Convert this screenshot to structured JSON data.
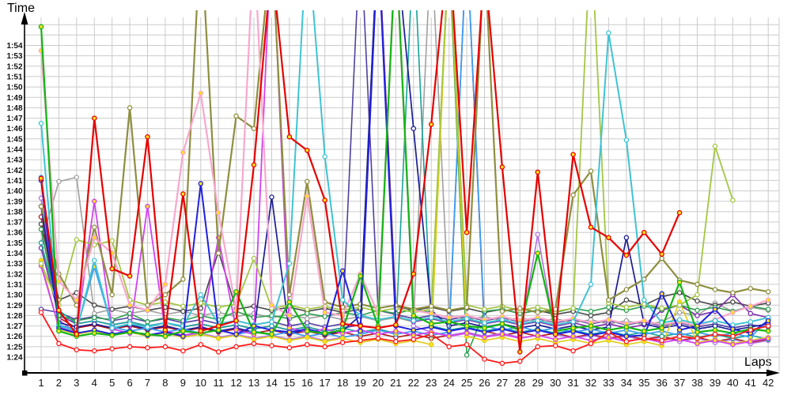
{
  "chart_data": {
    "type": "line",
    "title": "",
    "xlabel": "Laps",
    "ylabel": "Time",
    "grid": true,
    "grid_color": "#cbcbcb",
    "axis_color": "#000000",
    "background": "#ffffff",
    "marker_yellow": "#ffe01a",
    "marker_open": "#ffffff",
    "xlim": [
      1,
      42
    ],
    "ylim_seconds": [
      84,
      117
    ],
    "x_ticks": [
      1,
      2,
      3,
      4,
      5,
      6,
      7,
      8,
      9,
      10,
      11,
      12,
      13,
      14,
      15,
      16,
      17,
      18,
      19,
      20,
      21,
      22,
      23,
      24,
      25,
      26,
      27,
      28,
      29,
      30,
      31,
      32,
      33,
      34,
      35,
      36,
      37,
      38,
      39,
      40,
      41,
      42
    ],
    "y_ticks": [
      "1:24",
      "1:25",
      "1:26",
      "1:27",
      "1:28",
      "1:29",
      "1:30",
      "1:31",
      "1:32",
      "1:33",
      "1:34",
      "1:35",
      "1:36",
      "1:37",
      "1:38",
      "1:39",
      "1:40",
      "1:41",
      "1:42",
      "1:43",
      "1:44",
      "1:45",
      "1:46",
      "1:47",
      "1:48",
      "1:49",
      "1:50",
      "1:51",
      "1:52",
      "1:53",
      "1:54"
    ],
    "series": [
      {
        "id": "indigo",
        "color": "#50409f",
        "marker": "open",
        "w": 1.6,
        "values": [
          88.6,
          88.3,
          87.6,
          87.9,
          87.5,
          87.8,
          87.4,
          87.7,
          87.3,
          87.6,
          87.2,
          87.5,
          87.1,
          87.4,
          87.0,
          87.3,
          86.9,
          87.2,
          125,
          88.5,
          88.1,
          87.7,
          88.0,
          87.6,
          87.9,
          87.5,
          87.8,
          87.4,
          87.7,
          87.3,
          87.6,
          87.2,
          87.5,
          87.1,
          87.4,
          87.0,
          87.3,
          86.9,
          87.2,
          86.8,
          87.1,
          86.9
        ]
      },
      {
        "id": "darkred",
        "color": "#b01818",
        "marker": "open",
        "w": 1.6,
        "values": [
          97.5,
          87.8,
          86.8,
          87.1,
          86.7,
          87.0,
          86.6,
          86.9,
          86.5,
          86.8,
          86.4,
          86.7,
          86.3,
          86.6,
          86.2,
          86.5,
          86.1,
          86.4,
          86.0,
          86.3,
          85.9,
          86.2,
          85.8,
          86.1,
          124,
          86.5,
          86.1,
          86.4,
          86.0,
          86.3,
          85.9,
          86.2,
          85.8,
          86.1,
          85.7,
          86.0,
          85.6,
          85.9,
          85.5,
          85.8,
          85.4,
          85.7
        ]
      },
      {
        "id": "gray",
        "color": "#a0a0a0",
        "marker": "open",
        "w": 1.6,
        "values": [
          95.0,
          100.9,
          101.3,
          88.2,
          88.6,
          88.2,
          88.5,
          88.1,
          88.4,
          88.0,
          88.3,
          87.9,
          88.2,
          87.8,
          88.1,
          87.7,
          88.0,
          87.6,
          87.9,
          87.5,
          87.8,
          87.4,
          124,
          88.0,
          87.6,
          87.9,
          87.5,
          87.8,
          87.4,
          87.7,
          87.3,
          87.6,
          87.2,
          87.5,
          87.1,
          87.4,
          88.3,
          88.0,
          89.2,
          88.4,
          88.8,
          88.5
        ]
      },
      {
        "id": "darkgray",
        "color": "#474747",
        "marker": "open",
        "w": 1.6,
        "values": [
          96.8,
          89.5,
          90.2,
          89.0,
          88.6,
          88.9,
          88.5,
          88.8,
          88.4,
          88.7,
          94.2,
          88.6,
          88.9,
          88.5,
          88.8,
          88.4,
          88.7,
          88.3,
          88.6,
          125,
          88.9,
          88.5,
          88.8,
          88.4,
          88.7,
          88.3,
          88.6,
          88.2,
          88.5,
          88.1,
          88.4,
          88.0,
          88.3,
          89.5,
          89.0,
          89.8,
          90.2,
          89.4,
          89.0,
          89.3,
          88.9,
          89.2
        ]
      },
      {
        "id": "purple",
        "color": "#7e2fae",
        "marker": "open",
        "w": 1.6,
        "values": [
          94.5,
          88.0,
          87.2,
          87.5,
          87.1,
          87.4,
          87.0,
          87.3,
          86.9,
          87.2,
          86.8,
          87.1,
          86.7,
          87.0,
          86.6,
          86.9,
          86.5,
          86.8,
          87.1,
          125,
          88.0,
          87.4,
          87.7,
          87.3,
          87.6,
          87.2,
          87.5,
          87.1,
          87.4,
          87.0,
          87.3,
          86.9,
          87.2,
          86.8,
          87.1,
          88.5,
          89.0,
          88.0,
          88.4,
          90.0,
          88.2,
          87.8
        ]
      },
      {
        "id": "violet",
        "color": "#b273e0",
        "marker": "open",
        "w": 1.6,
        "values": [
          99.3,
          87.6,
          86.3,
          86.6,
          86.2,
          86.5,
          86.1,
          86.4,
          86.0,
          86.3,
          85.9,
          86.2,
          85.8,
          86.1,
          85.7,
          86.0,
          85.6,
          85.9,
          86.2,
          86.6,
          124,
          87.0,
          86.4,
          86.1,
          86.4,
          86.0,
          86.3,
          85.9,
          95.8,
          86.2,
          85.8,
          86.1,
          85.7,
          86.0,
          85.6,
          85.9,
          85.5,
          85.8,
          85.4,
          85.7,
          85.3,
          85.6
        ]
      },
      {
        "id": "teal",
        "color": "#17a398",
        "marker": "open",
        "w": 1.6,
        "values": [
          95.0,
          88.5,
          87.2,
          87.5,
          87.1,
          87.4,
          87.0,
          87.3,
          86.9,
          87.2,
          86.8,
          87.1,
          86.7,
          87.0,
          86.6,
          86.9,
          86.5,
          86.8,
          86.4,
          86.7,
          86.3,
          124,
          87.0,
          86.6,
          86.9,
          86.5,
          86.8,
          86.4,
          86.7,
          86.3,
          86.6,
          86.2,
          86.5,
          86.1,
          86.4,
          86.0,
          86.3,
          85.9,
          86.2,
          85.8,
          86.1,
          85.7
        ]
      },
      {
        "id": "forest",
        "color": "#2e9e4f",
        "marker": "open",
        "w": 1.6,
        "values": [
          96.3,
          88.0,
          87.5,
          87.8,
          87.6,
          88.2,
          87.4,
          87.8,
          87.5,
          88.0,
          87.6,
          88.4,
          87.8,
          88.0,
          87.7,
          88.2,
          87.9,
          88.3,
          88.0,
          88.5,
          88.2,
          88.6,
          88.3,
          123,
          84.2,
          88.4,
          88.6,
          88.2,
          88.5,
          88.3,
          88.7,
          88.4,
          88.8,
          88.5,
          88.9,
          88.6,
          89.0,
          88.5,
          88.8,
          88.4,
          88.9,
          88.6
        ]
      },
      {
        "id": "navy",
        "color": "#1c1c94",
        "marker": "open",
        "w": 1.7,
        "values": [
          98.5,
          87.3,
          86.9,
          87.2,
          86.8,
          87.1,
          86.7,
          87.0,
          86.6,
          86.9,
          86.5,
          86.8,
          86.4,
          99.4,
          86.3,
          86.6,
          86.2,
          86.5,
          88.0,
          125,
          124,
          106.0,
          88.5,
          87.0,
          87.3,
          86.9,
          87.2,
          86.8,
          87.1,
          86.7,
          87.0,
          86.6,
          86.9,
          95.5,
          87.2,
          86.8,
          87.1,
          86.7,
          87.0,
          86.6,
          86.9,
          87.2
        ]
      },
      {
        "id": "dodger",
        "color": "#3e9df2",
        "marker": "yellow",
        "w": 1.8,
        "values": [
          101.3,
          87.1,
          86.6,
          92.7,
          86.9,
          86.5,
          86.8,
          86.4,
          86.7,
          86.3,
          86.6,
          86.2,
          86.5,
          86.1,
          86.4,
          86.0,
          86.3,
          85.9,
          86.2,
          86.6,
          86.2,
          86.5,
          86.1,
          86.4,
          124,
          87.0,
          86.6,
          86.9,
          86.5,
          86.8,
          86.4,
          86.7,
          86.3,
          86.6,
          86.2,
          86.5,
          86.1,
          86.4,
          86.0,
          86.3,
          85.9,
          87.6
        ]
      },
      {
        "id": "yellow",
        "color": "#dfce1f",
        "marker": "yellow",
        "w": 1.7,
        "values": [
          93.3,
          86.7,
          86.2,
          86.5,
          86.1,
          86.4,
          86.0,
          86.3,
          85.9,
          86.2,
          85.8,
          86.1,
          85.7,
          86.0,
          85.6,
          85.9,
          85.5,
          85.8,
          85.4,
          85.7,
          85.3,
          85.6,
          85.2,
          124,
          86.0,
          85.6,
          85.9,
          85.5,
          85.8,
          85.4,
          85.7,
          85.3,
          85.6,
          85.2,
          85.5,
          85.1,
          89.3,
          85.4,
          85.7,
          85.3,
          85.6,
          85.9
        ]
      },
      {
        "id": "magenta",
        "color": "#d143ef",
        "marker": "yellow",
        "w": 1.8,
        "values": [
          92.8,
          86.9,
          86.4,
          99.0,
          86.7,
          86.3,
          98.5,
          86.5,
          86.1,
          86.4,
          95.5,
          86.6,
          86.2,
          125,
          86.8,
          86.4,
          86.7,
          86.3,
          86.6,
          86.2,
          86.5,
          86.1,
          86.4,
          86.0,
          86.3,
          85.9,
          86.2,
          85.8,
          86.1,
          85.7,
          86.0,
          85.6,
          85.9,
          85.5,
          85.8,
          85.4,
          85.7,
          85.3,
          85.6,
          85.2,
          85.5,
          85.8
        ]
      },
      {
        "id": "yellowgreen",
        "color": "#a3c643",
        "marker": "open",
        "w": 1.8,
        "values": [
          93.0,
          89.0,
          95.3,
          94.8,
          95.2,
          89.5,
          89.0,
          89.3,
          88.9,
          89.2,
          88.8,
          89.1,
          93.5,
          88.7,
          89.0,
          88.6,
          88.9,
          88.5,
          88.8,
          88.4,
          88.7,
          88.3,
          88.6,
          124,
          89.0,
          88.6,
          88.9,
          88.5,
          88.8,
          88.4,
          88.7,
          125,
          89.2,
          88.8,
          89.1,
          88.7,
          89.0,
          90.0,
          104.3,
          99.1,
          null,
          null
        ]
      },
      {
        "id": "olive",
        "color": "#8e8e40",
        "marker": "open",
        "w": 2.2,
        "values": [
          98.5,
          92.0,
          89.0,
          96.5,
          90.0,
          108.0,
          89.0,
          90.0,
          91.5,
          125,
          94.0,
          107.2,
          106.0,
          124,
          90.0,
          100.9,
          89.3,
          88.8,
          89.1,
          88.7,
          89.0,
          88.6,
          88.9,
          88.5,
          88.8,
          123,
          88.4,
          88.7,
          88.3,
          88.6,
          99.6,
          101.9,
          89.5,
          90.5,
          91.5,
          93.5,
          91.4,
          91.0,
          90.5,
          90.2,
          90.6,
          90.3
        ]
      },
      {
        "id": "pink",
        "color": "#f9a7cd",
        "marker": "yellow",
        "w": 2.2,
        "values": [
          113.5,
          91.3,
          89.5,
          95.5,
          94.0,
          89.0,
          88.5,
          91.0,
          103.7,
          109.4,
          97.9,
          88.5,
          124,
          89.0,
          88.0,
          99.5,
          88.3,
          88.0,
          92.0,
          88.2,
          123,
          88.5,
          88.2,
          87.8,
          88.0,
          87.6,
          87.9,
          87.5,
          87.8,
          87.4,
          87.7,
          87.3,
          87.6,
          87.2,
          87.5,
          87.1,
          87.4,
          87.0,
          87.6,
          88.3,
          88.9,
          89.5
        ]
      },
      {
        "id": "cyan",
        "color": "#3fc3d4",
        "marker": "open",
        "w": 2.0,
        "values": [
          106.5,
          87.0,
          86.5,
          93.3,
          86.8,
          87.2,
          86.9,
          87.3,
          87.0,
          90.0,
          87.2,
          87.5,
          87.1,
          87.4,
          93.0,
          125,
          103.3,
          89.5,
          88.0,
          87.6,
          87.9,
          87.5,
          87.8,
          87.4,
          87.7,
          87.3,
          87.6,
          87.2,
          87.5,
          87.1,
          87.4,
          91.0,
          115.2,
          104.9,
          89.5,
          87.3,
          87.6,
          87.2,
          87.5,
          87.1,
          87.4,
          87.8
        ]
      },
      {
        "id": "blue",
        "color": "#2020dd",
        "marker": "yellow",
        "w": 2.0,
        "values": [
          101.0,
          86.8,
          86.3,
          86.6,
          86.2,
          86.5,
          86.1,
          86.4,
          86.0,
          100.7,
          86.6,
          86.2,
          87.0,
          86.6,
          86.4,
          86.7,
          86.3,
          92.3,
          86.5,
          124,
          87.0,
          86.6,
          86.9,
          86.5,
          86.8,
          86.4,
          86.7,
          86.3,
          86.6,
          86.2,
          86.5,
          86.1,
          86.4,
          86.0,
          86.1,
          90.1,
          86.6,
          87.0,
          88.6,
          86.7,
          86.3,
          87.5
        ]
      },
      {
        "id": "green",
        "color": "#15b415",
        "marker": "yellow",
        "w": 2.2,
        "values": [
          115.8,
          86.5,
          86.0,
          86.3,
          86.1,
          86.4,
          86.2,
          86.0,
          86.5,
          86.3,
          86.6,
          90.3,
          86.4,
          86.2,
          89.3,
          86.5,
          86.3,
          86.6,
          91.8,
          87.0,
          124,
          88.0,
          87.2,
          87.4,
          87.0,
          86.8,
          87.2,
          86.6,
          94.0,
          86.5,
          86.8,
          87.0,
          86.6,
          86.9,
          86.5,
          86.8,
          91.2,
          86.4,
          86.6,
          86.3,
          86.7,
          86.5
        ]
      },
      {
        "id": "red-b",
        "color": "#ff1a1a",
        "marker": "open",
        "w": 1.8,
        "values": [
          88.3,
          85.3,
          84.7,
          84.6,
          84.8,
          85.0,
          84.9,
          85.0,
          84.6,
          85.2,
          84.5,
          85.0,
          85.3,
          85.1,
          84.9,
          85.2,
          85.0,
          85.4,
          85.6,
          85.8,
          85.5,
          85.7,
          86.2,
          85.0,
          85.2,
          83.8,
          83.4,
          83.6,
          85.0,
          85.1,
          84.6,
          85.3,
          86.4,
          85.5,
          85.8,
          85.6,
          86.0,
          85.8,
          86.2,
          86.0,
          86.6,
          87.0
        ]
      },
      {
        "id": "red-a",
        "color": "#e60000",
        "marker": "yellow",
        "w": 2.2,
        "values": [
          101.2,
          88.5,
          86.2,
          107.0,
          92.5,
          91.8,
          105.2,
          86.6,
          99.7,
          86.5,
          87.0,
          87.5,
          102.5,
          122,
          105.2,
          103.9,
          99.1,
          87.2,
          87.0,
          86.8,
          87.1,
          92.0,
          106.4,
          124,
          96.0,
          122,
          102.3,
          84.5,
          101.8,
          86.2,
          103.5,
          96.5,
          95.5,
          93.8,
          96.0,
          93.9,
          97.9,
          null,
          null,
          null,
          null,
          null
        ]
      }
    ]
  }
}
